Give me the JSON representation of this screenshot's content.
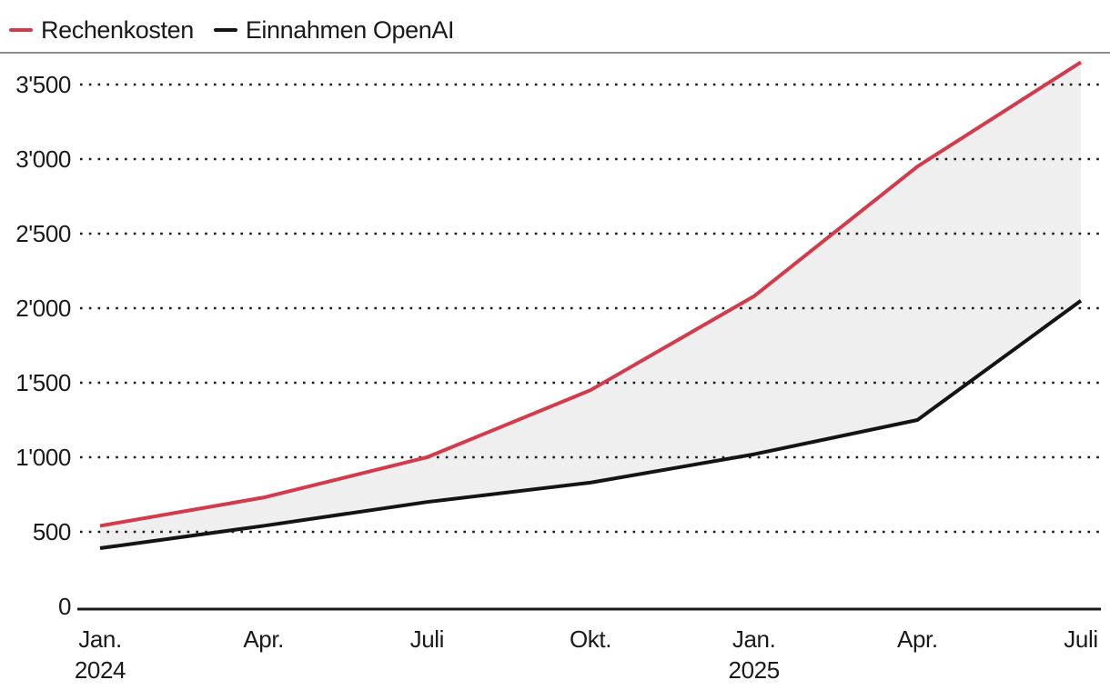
{
  "chart_data": {
    "type": "line",
    "title": "",
    "xlabel": "",
    "ylabel": "",
    "categories": [
      {
        "label": "Jan.",
        "sublabel": "2024"
      },
      {
        "label": "Apr.",
        "sublabel": ""
      },
      {
        "label": "Juli",
        "sublabel": ""
      },
      {
        "label": "Okt.",
        "sublabel": ""
      },
      {
        "label": "Jan.",
        "sublabel": "2025"
      },
      {
        "label": "Apr.",
        "sublabel": ""
      },
      {
        "label": "Juli",
        "sublabel": ""
      }
    ],
    "series": [
      {
        "name": "Rechenkosten",
        "color": "#d33a4a",
        "values": [
          540,
          730,
          1000,
          1450,
          2080,
          2950,
          3650
        ]
      },
      {
        "name": "Einnahmen OpenAI",
        "color": "#141414",
        "values": [
          390,
          540,
          700,
          830,
          1020,
          1250,
          2050
        ]
      }
    ],
    "fill_between": {
      "upper": "Rechenkosten",
      "lower": "Einnahmen OpenAI",
      "color": "#efefef"
    },
    "ylim": [
      0,
      3650
    ],
    "yticks": [
      {
        "value": 0,
        "label": "0"
      },
      {
        "value": 500,
        "label": "500"
      },
      {
        "value": 1000,
        "label": "1'000"
      },
      {
        "value": 1500,
        "label": "1'500"
      },
      {
        "value": 2000,
        "label": "2'000"
      },
      {
        "value": 2500,
        "label": "2'500"
      },
      {
        "value": 3000,
        "label": "3'000"
      },
      {
        "value": 3500,
        "label": "3'500"
      }
    ],
    "grid": "dotted-horizontal",
    "legend_position": "top-left",
    "colors": {
      "grid_dots": "#1a1a1a",
      "axis_line": "#1a1a1a",
      "divider": "#8e8e8e",
      "background": "#ffffff"
    }
  }
}
